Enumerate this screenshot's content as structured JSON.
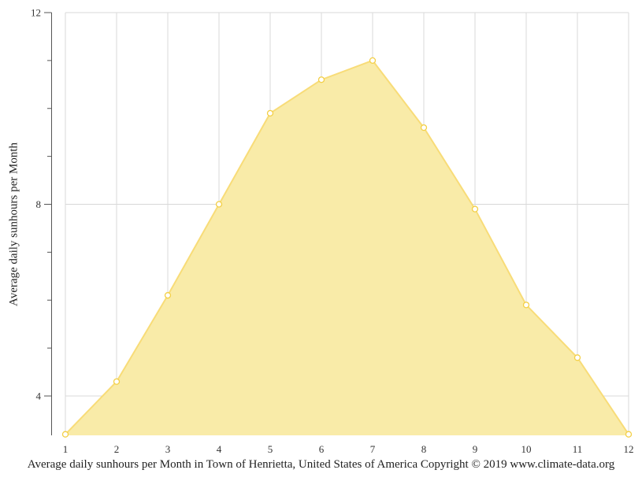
{
  "chart_data": {
    "type": "area",
    "title": "",
    "xlabel": "",
    "ylabel": "Average daily sunhours per Month",
    "caption": "Average daily sunhours per Month in Town of Henrietta, United States of America Copyright © 2019 www.climate-data.org",
    "categories": [
      "1",
      "2",
      "3",
      "4",
      "5",
      "6",
      "7",
      "8",
      "9",
      "10",
      "11",
      "12"
    ],
    "series": [
      {
        "name": "Average daily sunhours",
        "values": [
          3.2,
          4.3,
          6.1,
          8.0,
          9.9,
          10.6,
          11.0,
          9.6,
          7.9,
          5.9,
          4.8,
          3.2
        ]
      }
    ],
    "ylim": [
      3.2,
      12
    ],
    "y_major_ticks": [
      4,
      8,
      12
    ],
    "y_minor_ticks": [
      5,
      6,
      7,
      9,
      10,
      11
    ],
    "grid": true,
    "legend": "none",
    "colors": {
      "fill": "#f9eba8",
      "line": "#f8dc78",
      "marker_stroke": "#f3cf45",
      "marker_fill": "#ffffff",
      "grid": "#d8d8d8",
      "axis": "#555555"
    }
  }
}
